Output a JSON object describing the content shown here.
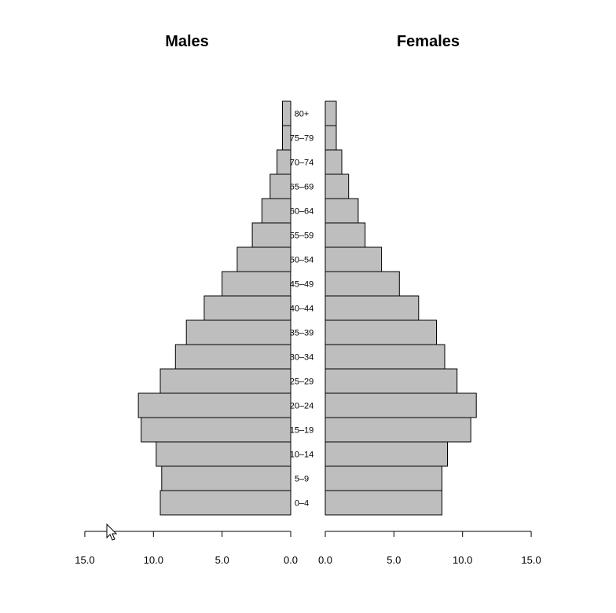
{
  "chart_data": {
    "type": "bar",
    "subtype": "population-pyramid",
    "categories": [
      "0–4",
      "5–9",
      "10–14",
      "15–19",
      "20–24",
      "25–29",
      "30–34",
      "35–39",
      "40–44",
      "45–49",
      "50–54",
      "55–59",
      "60–64",
      "65–69",
      "70–74",
      "75–79",
      "80+"
    ],
    "series": [
      {
        "name": "Males",
        "title": "Males",
        "values": [
          9.5,
          9.4,
          9.8,
          10.9,
          11.1,
          9.5,
          8.4,
          7.6,
          6.3,
          5.0,
          3.9,
          2.8,
          2.1,
          1.5,
          1.0,
          0.6,
          0.6
        ]
      },
      {
        "name": "Females",
        "title": "Females",
        "values": [
          8.5,
          8.5,
          8.9,
          10.6,
          11.0,
          9.6,
          8.7,
          8.1,
          6.8,
          5.4,
          4.1,
          2.9,
          2.4,
          1.7,
          1.2,
          0.8,
          0.8
        ]
      }
    ],
    "xlim": [
      0,
      15
    ],
    "xticks": [
      0,
      5,
      10,
      15
    ],
    "xtick_labels_left": [
      "15.0",
      "10.0",
      "5.0",
      "0.0"
    ],
    "xtick_labels_right": [
      "0.0",
      "5.0",
      "10.0",
      "15.0"
    ],
    "bar_fill": "#bebebe",
    "bar_stroke": "#000000"
  }
}
